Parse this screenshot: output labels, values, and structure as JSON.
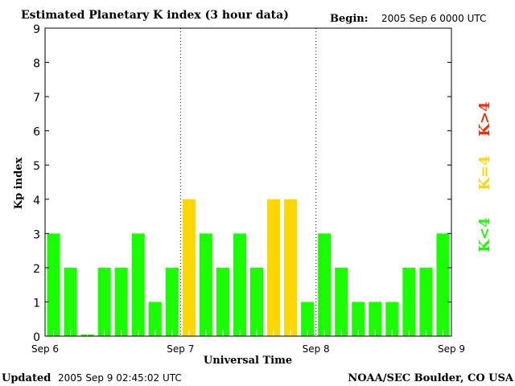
{
  "header": {
    "title": "Estimated Planetary K index (3 hour data)",
    "begin_label": "Begin:",
    "begin_value": "2005 Sep 6 0000 UTC"
  },
  "footer": {
    "updated_label": "Updated",
    "updated_value": "2005 Sep  9 02:45:02 UTC",
    "source": "NOAA/SEC Boulder, CO USA"
  },
  "legend": [
    {
      "label": "K>4",
      "color": "#ff2a00"
    },
    {
      "label": "K=4",
      "color": "#ffd700"
    },
    {
      "label": "K<4",
      "color": "#1aff00"
    }
  ],
  "chart_data": {
    "type": "bar",
    "title": "Estimated Planetary K index (3 hour data)",
    "xlabel": "Universal Time",
    "ylabel": "Kp index",
    "ylim": [
      0,
      9
    ],
    "yticks": [
      "0",
      "1",
      "2",
      "3",
      "4",
      "5",
      "6",
      "7",
      "8",
      "9"
    ],
    "xticks": [
      "Sep 6",
      "Sep 7",
      "Sep 8",
      "Sep 9"
    ],
    "interval_hours": 3,
    "values": [
      3,
      2,
      0.05,
      2,
      2,
      3,
      1,
      2,
      4,
      3,
      2,
      3,
      2,
      4,
      4,
      1,
      3,
      2,
      1,
      1,
      1,
      2,
      2,
      3
    ],
    "colors": {
      "low": "#1aff00",
      "equal": "#ffd700",
      "high": "#ff2a00"
    }
  }
}
